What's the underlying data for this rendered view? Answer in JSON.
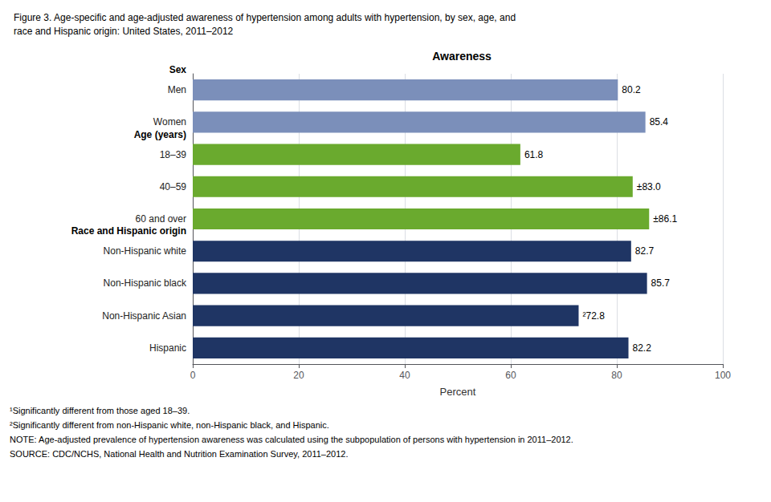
{
  "chart_data": {
    "type": "bar",
    "orientation": "horizontal",
    "title": "Figure 3. Age-specific and age-adjusted awareness of hypertension among adults with hypertension, by sex, age, and\nrace and Hispanic origin: United States, 2011–2012",
    "subtitle": "Awareness",
    "categories": [
      "Hispanic",
      "Non-Hispanic Asian",
      "Non-Hispanic black",
      "Non-Hispanic white",
      "60 and over",
      "40–59",
      "18–39",
      "Women",
      "Men"
    ],
    "values": [
      82.2,
      72.8,
      85.7,
      82.7,
      86.1,
      83.0,
      61.8,
      85.4,
      80.2
    ],
    "colors": [
      "#1f3564",
      "#1f3564",
      "#1f3564",
      "#1f3564",
      "#6aaa2e",
      "#6aaa2e",
      "#6aaa2e",
      "#7b8fba",
      "#7b8fba"
    ],
    "data_labels": true,
    "value_labels": [
      "82.2",
      "²72.8",
      "85.7",
      "82.7",
      "±86.1",
      "±83.0",
      "61.8",
      "85.4",
      "80.2"
    ],
    "xlabel": "Percent",
    "xlim": [
      0,
      100
    ],
    "xticks": [
      0,
      20,
      40,
      60,
      80,
      100
    ],
    "grid": true,
    "annotations": [
      {
        "text": "Sex",
        "above": "Men"
      },
      {
        "text": "Age (years)",
        "above": "18–39"
      },
      {
        "text": "Race and Hispanic origin",
        "above": "Non-Hispanic white"
      }
    ],
    "footnotes": [
      "¹Significantly different from those aged 18–39.",
      "²Significantly different from non-Hispanic white, non-Hispanic black, and Hispanic.",
      "NOTE: Age-adjusted prevalence of hypertension awareness was calculated using the subpopulation of persons with hypertension in 2011–2012.",
      "SOURCE: CDC/NCHS, National Health and Nutrition Examination Survey, 2011–2012."
    ]
  }
}
